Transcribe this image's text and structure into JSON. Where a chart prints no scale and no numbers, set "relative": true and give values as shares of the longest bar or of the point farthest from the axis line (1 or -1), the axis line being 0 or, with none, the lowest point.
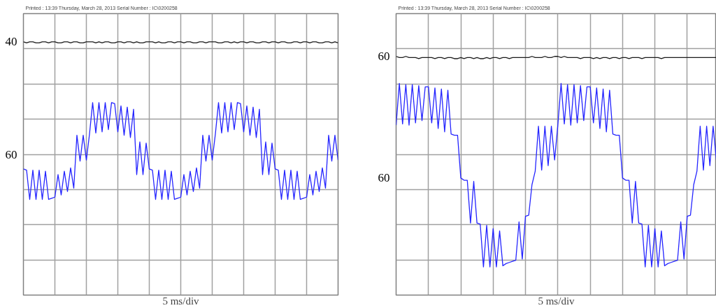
{
  "chart_data": [
    {
      "type": "line",
      "relative": true,
      "title": "Printed : 13:39 Thursday, March 28, 2013        Serial Number : IC\\0200258",
      "xlabel": "5 ms/div",
      "grid": true,
      "categories": [
        null,
        null,
        null,
        null,
        null,
        null,
        null,
        null,
        null,
        null,
        null,
        null,
        null,
        null,
        null,
        null,
        null,
        null,
        null,
        null,
        null,
        null,
        null,
        null,
        null,
        null,
        null,
        null,
        null,
        null,
        null,
        null,
        null,
        null,
        null,
        null,
        null,
        null,
        null,
        null,
        null,
        null,
        null,
        null,
        null,
        null,
        null,
        null,
        null,
        null,
        null,
        null,
        null,
        null,
        null,
        null,
        null,
        null,
        null,
        null,
        null,
        null,
        null,
        null,
        null,
        null,
        null,
        null,
        null,
        null,
        null,
        null,
        null,
        null,
        null,
        null,
        null,
        null,
        null,
        null,
        null,
        null,
        null,
        null,
        null,
        null,
        null,
        null,
        null,
        null,
        null,
        null,
        null,
        null,
        null,
        null,
        null,
        null,
        null,
        null,
        null
      ],
      "annotations": [
        "40",
        "60"
      ],
      "series": [
        {
          "color": "#1a1a1a",
          "values": [
            1,
            0.99,
            1,
            1,
            0.99,
            0.99,
            1,
            1,
            0.99,
            1,
            1,
            0.99,
            0.99,
            1,
            1,
            0.99,
            1,
            1,
            0.99,
            0.99,
            1,
            1,
            1,
            0.99,
            1,
            0.99,
            1,
            1,
            0.99,
            0.99,
            1,
            1,
            0.99,
            1,
            1,
            0.99,
            1,
            0.99,
            0.99,
            1,
            1,
            1,
            0.99,
            1,
            0.99,
            0.99,
            1,
            1,
            0.99,
            1,
            1,
            0.99,
            1,
            1,
            0.99,
            0.99,
            1,
            1,
            0.99,
            1,
            1,
            1,
            0.99,
            0.99,
            1,
            1,
            0.99,
            1,
            0.99,
            1,
            1,
            0.99,
            1,
            1,
            0.99,
            0.99,
            1,
            1,
            0.99,
            1,
            1,
            0.99,
            1,
            1,
            0.99,
            0.99,
            1,
            1,
            0.99,
            1,
            1,
            0.99,
            1,
            1,
            0.99,
            0.99,
            1,
            1,
            0.99,
            1,
            0.99
          ]
        },
        {
          "color": "#2424ff",
          "values": [
            -0.13,
            -0.14,
            -0.4,
            -0.14,
            -0.4,
            -0.14,
            -0.4,
            -0.15,
            -0.4,
            -0.39,
            -0.38,
            -0.18,
            -0.36,
            -0.15,
            -0.33,
            -0.12,
            -0.3,
            0.17,
            -0.06,
            0.17,
            -0.05,
            0.18,
            0.46,
            0.19,
            0.46,
            0.2,
            0.46,
            0.22,
            0.46,
            0.45,
            0.2,
            0.43,
            0.17,
            0.42,
            0.15,
            0.4,
            -0.18,
            0.11,
            -0.18,
            0.1,
            -0.13,
            -0.14,
            -0.4,
            -0.14,
            -0.4,
            -0.14,
            -0.4,
            -0.15,
            -0.4,
            -0.39,
            -0.38,
            -0.18,
            -0.36,
            -0.15,
            -0.33,
            -0.12,
            -0.3,
            0.17,
            -0.06,
            0.17,
            -0.05,
            0.18,
            0.46,
            0.19,
            0.46,
            0.2,
            0.46,
            0.22,
            0.46,
            0.45,
            0.2,
            0.43,
            0.17,
            0.42,
            0.15,
            0.4,
            -0.18,
            0.11,
            -0.18,
            0.1,
            -0.13,
            -0.14,
            -0.4,
            -0.14,
            -0.4,
            -0.14,
            -0.4,
            -0.15,
            -0.4,
            -0.39,
            -0.38,
            -0.18,
            -0.36,
            -0.15,
            -0.33,
            -0.12,
            -0.3,
            0.17,
            -0.06,
            0.17,
            -0.05
          ]
        }
      ]
    },
    {
      "type": "line",
      "relative": true,
      "title": "Printed : 13:39 Thursday, March 28, 2013        Serial Number : IC\\0200258",
      "xlabel": "5 ms/div",
      "grid": true,
      "categories": [
        null,
        null,
        null,
        null,
        null,
        null,
        null,
        null,
        null,
        null,
        null,
        null,
        null,
        null,
        null,
        null,
        null,
        null,
        null,
        null,
        null,
        null,
        null,
        null,
        null,
        null,
        null,
        null,
        null,
        null,
        null,
        null,
        null,
        null,
        null,
        null,
        null,
        null,
        null,
        null,
        null,
        null,
        null,
        null,
        null,
        null,
        null,
        null,
        null,
        null,
        null,
        null,
        null,
        null,
        null,
        null,
        null,
        null,
        null,
        null,
        null,
        null,
        null,
        null,
        null,
        null,
        null,
        null,
        null,
        null,
        null,
        null,
        null,
        null,
        null,
        null,
        null,
        null,
        null,
        null,
        null,
        null,
        null,
        null,
        null,
        null,
        null,
        null,
        null,
        null,
        null,
        null,
        null,
        null,
        null,
        null,
        null,
        null,
        null,
        null
      ],
      "annotations": [
        "60",
        "60"
      ],
      "series": [
        {
          "color": "#1a1a1a",
          "values": [
            0.87,
            0.86,
            0.86,
            0.87,
            0.86,
            0.86,
            0.86,
            0.85,
            0.86,
            0.86,
            0.86,
            0.86,
            0.85,
            0.86,
            0.86,
            0.85,
            0.86,
            0.86,
            0.85,
            0.85,
            0.86,
            0.85,
            0.86,
            0.86,
            0.85,
            0.86,
            0.85,
            0.85,
            0.86,
            0.85,
            0.86,
            0.86,
            0.85,
            0.86,
            0.86,
            0.85,
            0.86,
            0.86,
            0.86,
            0.86,
            0.86,
            0.86,
            0.87,
            0.86,
            0.86,
            0.86,
            0.87,
            0.86,
            0.86,
            0.87,
            0.87,
            0.86,
            0.87,
            0.86,
            0.86,
            0.86,
            0.86,
            0.85,
            0.86,
            0.86,
            0.86,
            0.85,
            0.86,
            0.85,
            0.86,
            0.86,
            0.85,
            0.86,
            0.86,
            0.85,
            0.86,
            0.86,
            0.85,
            0.86,
            0.86,
            0.86,
            0.85,
            0.86,
            0.86,
            0.86,
            0.86,
            0.86,
            0.85,
            0.86,
            0.86,
            0.86,
            0.86,
            0.86,
            0.86,
            0.86,
            0.86,
            0.86,
            0.86,
            0.86,
            0.86,
            0.86,
            0.86,
            0.86,
            0.86,
            0.86
          ]
        },
        {
          "color": "#2424ff",
          "values": [
            0.26,
            0.63,
            0.27,
            0.62,
            0.26,
            0.62,
            0.28,
            0.61,
            0.3,
            0.6,
            0.6,
            0.28,
            0.59,
            0.23,
            0.58,
            0.2,
            0.57,
            0.18,
            0.17,
            0.17,
            -0.21,
            -0.23,
            -0.23,
            -0.61,
            -0.24,
            -0.61,
            -0.62,
            -1,
            -0.63,
            -1,
            -0.66,
            -1,
            -0.68,
            -0.99,
            -0.97,
            -0.96,
            -0.95,
            -0.94,
            -0.6,
            -0.93,
            -0.55,
            -0.54,
            -0.27,
            -0.15,
            0.25,
            -0.14,
            0.25,
            -0.1,
            0.25,
            -0.05,
            0.26,
            0.63,
            0.27,
            0.62,
            0.26,
            0.62,
            0.28,
            0.61,
            0.3,
            0.6,
            0.6,
            0.28,
            0.59,
            0.23,
            0.58,
            0.2,
            0.57,
            0.18,
            0.17,
            0.17,
            -0.21,
            -0.23,
            -0.23,
            -0.61,
            -0.24,
            -0.61,
            -0.62,
            -1,
            -0.63,
            -1,
            -0.66,
            -1,
            -0.68,
            -0.99,
            -0.97,
            -0.96,
            -0.95,
            -0.94,
            -0.6,
            -0.93,
            -0.55,
            -0.54,
            -0.27,
            -0.15,
            0.25,
            -0.14,
            0.25,
            -0.1,
            0.25,
            -0.05
          ]
        }
      ]
    }
  ]
}
